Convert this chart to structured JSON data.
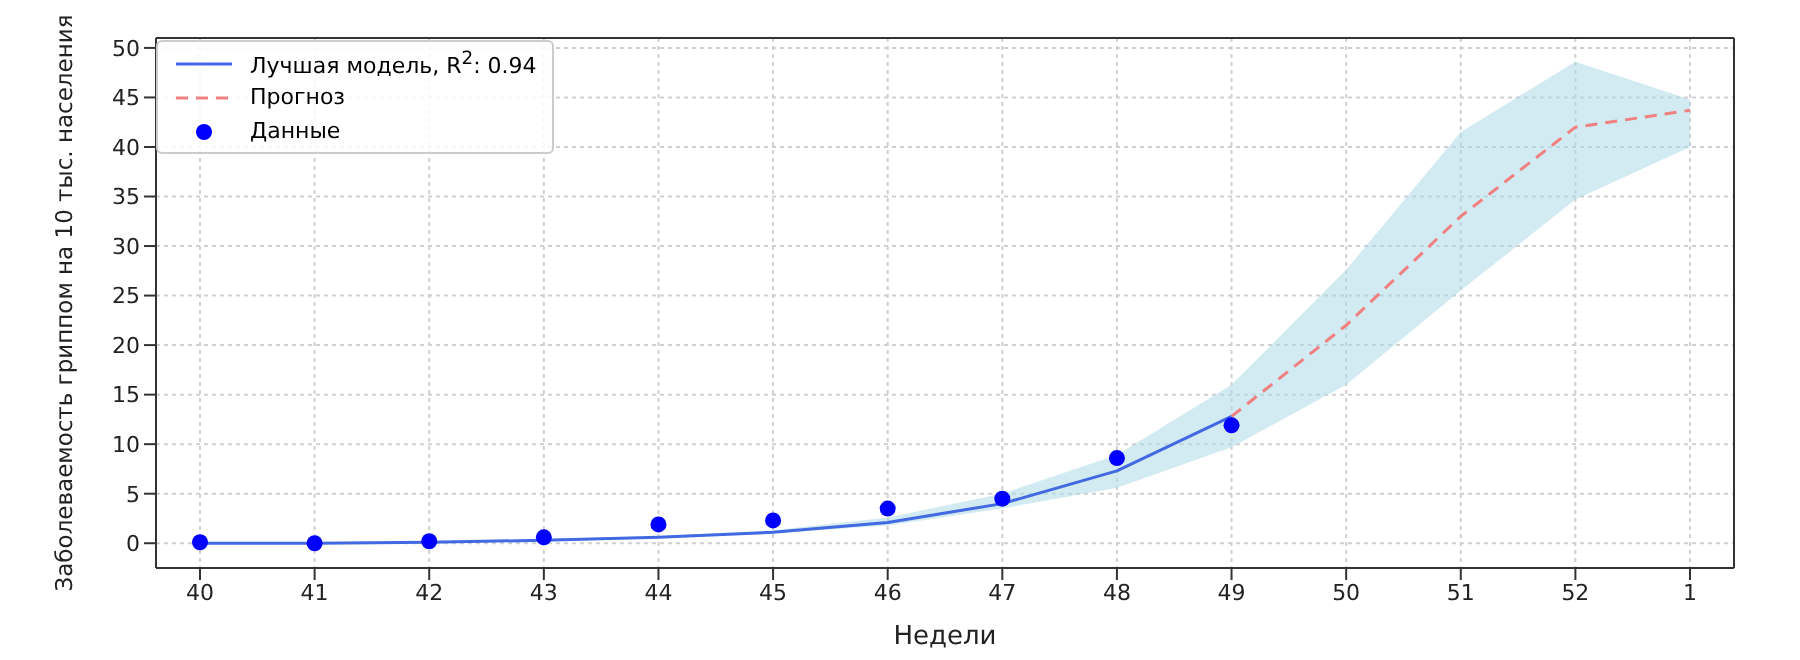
{
  "chart_data": {
    "type": "line",
    "xlabel": "Недели",
    "ylabel": "Заболеваемость гриппом на 10 тыс. населения",
    "categories": [
      "40",
      "41",
      "42",
      "43",
      "44",
      "45",
      "46",
      "47",
      "48",
      "49",
      "50",
      "51",
      "52",
      "1"
    ],
    "series": [
      {
        "name": "Лучшая модель, R$^{2}$: 0.94",
        "color": "#4169e1",
        "line_style": "solid",
        "values": [
          0,
          0,
          0.1,
          0.3,
          0.6,
          1.1,
          2.1,
          4.0,
          7.3,
          12.8,
          null,
          null,
          null,
          null
        ]
      },
      {
        "name": "Прогноз",
        "color": "#f08080",
        "line_style": "dashed",
        "values": [
          null,
          null,
          null,
          null,
          null,
          null,
          null,
          null,
          null,
          12.8,
          22,
          33,
          42,
          43.7
        ],
        "lower": [
          0,
          0,
          0.1,
          0.3,
          0.5,
          1.0,
          1.8,
          3.5,
          5.6,
          9.7,
          16,
          25.5,
          34.7,
          40
        ],
        "upper": [
          0,
          0,
          0.2,
          0.4,
          0.7,
          1.3,
          2.6,
          5.0,
          8.9,
          16,
          27.6,
          41.5,
          48.6,
          44.8
        ]
      },
      {
        "name": "Данные",
        "type": "scatter",
        "color": "#0000ff",
        "marker": "circle",
        "values": [
          0.1,
          0,
          0.2,
          0.6,
          1.9,
          2.3,
          3.5,
          4.5,
          8.6,
          11.9,
          null,
          null,
          null,
          null
        ]
      }
    ],
    "ylim": [
      -2.5,
      51
    ],
    "yticks": [
      0,
      5,
      10,
      15,
      20,
      25,
      30,
      35,
      40,
      45,
      50
    ],
    "grid": true,
    "legend": "top left"
  }
}
